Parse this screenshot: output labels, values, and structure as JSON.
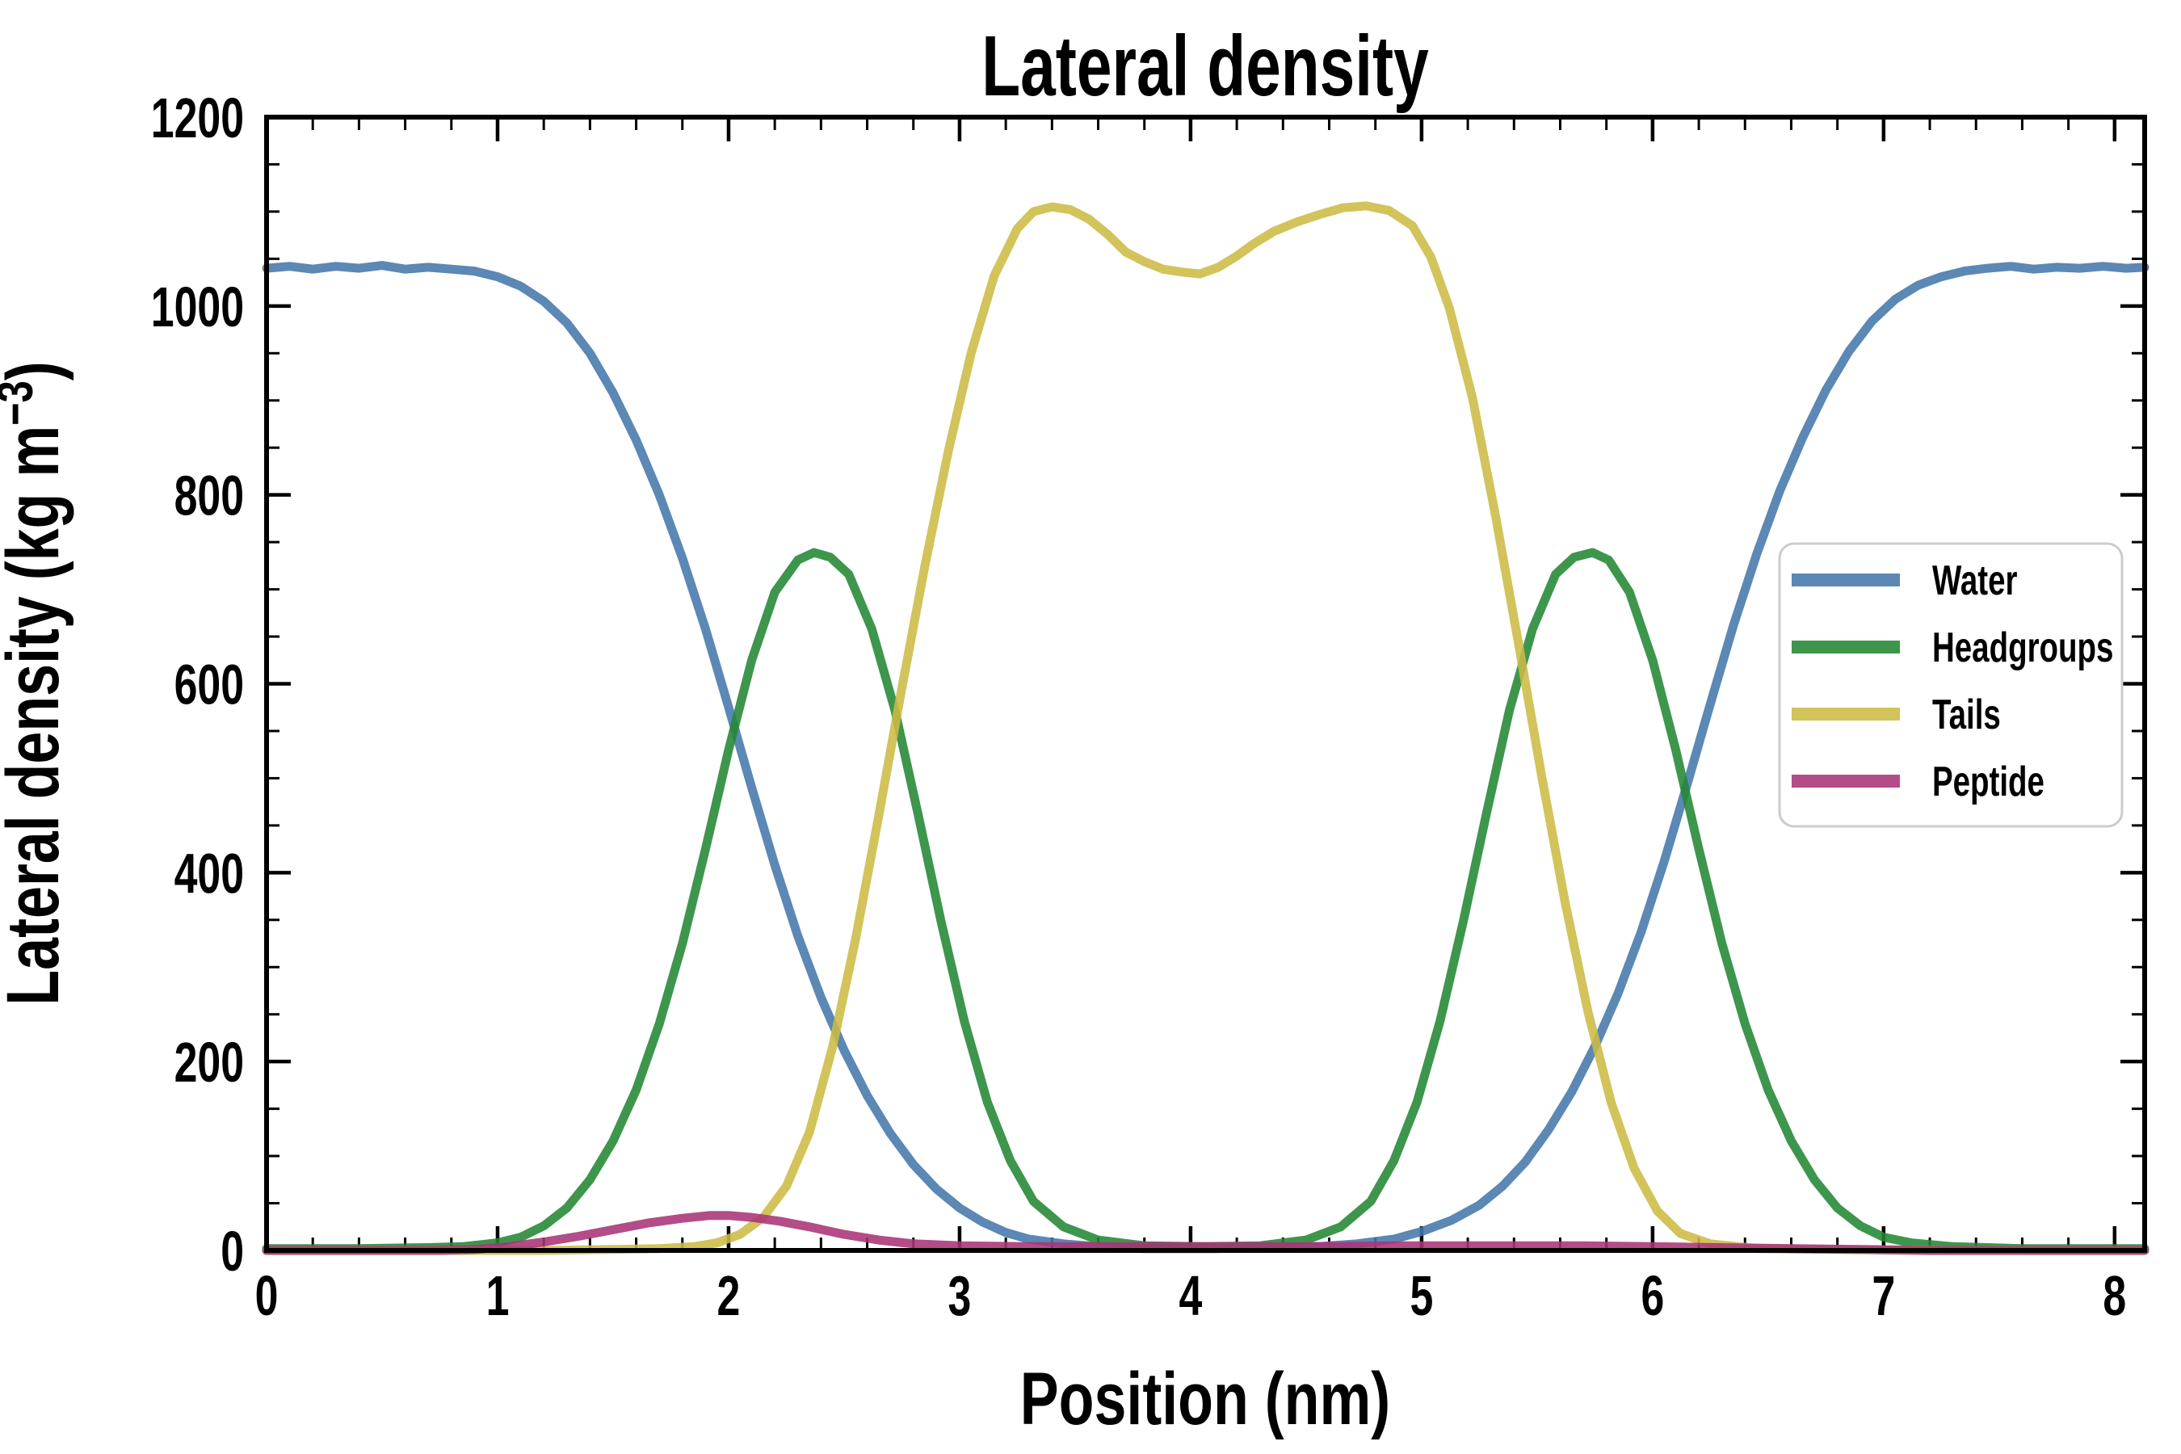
{
  "figure": {
    "background": "#ffffff",
    "text_color": "#000000"
  },
  "chart_data": {
    "type": "line",
    "title": "Lateral density",
    "xlabel": "Position (nm)",
    "ylabel": "Lateral density (kg m⁻³)",
    "ylabel_parts": {
      "main": "Lateral density (kg m",
      "sup": "−3",
      "close": ")"
    },
    "xlim": [
      0,
      8.13
    ],
    "ylim": [
      0,
      1200
    ],
    "x_major_ticks": [
      0,
      1,
      2,
      3,
      4,
      5,
      6,
      7,
      8
    ],
    "x_minor_step": 0.2,
    "y_major_ticks": [
      0,
      200,
      400,
      600,
      800,
      1000,
      1200
    ],
    "y_minor_step": 50,
    "grid": false,
    "tick_direction": "in",
    "line_width": 11,
    "line_opacity": 0.88,
    "legend_position": "center right",
    "series": [
      {
        "name": "Water",
        "color": "#4477AA",
        "points": [
          [
            0,
            1040
          ],
          [
            0.1,
            1042
          ],
          [
            0.2,
            1039
          ],
          [
            0.3,
            1042
          ],
          [
            0.4,
            1040
          ],
          [
            0.5,
            1043
          ],
          [
            0.6,
            1039
          ],
          [
            0.7,
            1041
          ],
          [
            0.8,
            1039
          ],
          [
            0.9,
            1037
          ],
          [
            1.0,
            1031
          ],
          [
            1.1,
            1021
          ],
          [
            1.2,
            1005
          ],
          [
            1.3,
            982
          ],
          [
            1.4,
            950
          ],
          [
            1.5,
            908
          ],
          [
            1.6,
            858
          ],
          [
            1.7,
            800
          ],
          [
            1.8,
            733
          ],
          [
            1.9,
            658
          ],
          [
            2.0,
            575
          ],
          [
            2.1,
            490
          ],
          [
            2.2,
            408
          ],
          [
            2.3,
            333
          ],
          [
            2.4,
            268
          ],
          [
            2.5,
            212
          ],
          [
            2.6,
            164
          ],
          [
            2.7,
            124
          ],
          [
            2.8,
            91
          ],
          [
            2.9,
            65
          ],
          [
            3.0,
            45
          ],
          [
            3.1,
            30
          ],
          [
            3.2,
            19
          ],
          [
            3.3,
            12
          ],
          [
            3.45,
            7
          ],
          [
            3.6,
            4
          ],
          [
            3.8,
            2
          ],
          [
            4.1,
            2
          ],
          [
            4.35,
            3
          ],
          [
            4.55,
            4
          ],
          [
            4.72,
            7
          ],
          [
            4.88,
            12
          ],
          [
            5.0,
            20
          ],
          [
            5.13,
            32
          ],
          [
            5.25,
            48
          ],
          [
            5.35,
            68
          ],
          [
            5.45,
            94
          ],
          [
            5.55,
            128
          ],
          [
            5.65,
            168
          ],
          [
            5.75,
            216
          ],
          [
            5.85,
            272
          ],
          [
            5.95,
            337
          ],
          [
            6.05,
            412
          ],
          [
            6.15,
            494
          ],
          [
            6.25,
            579
          ],
          [
            6.35,
            662
          ],
          [
            6.45,
            737
          ],
          [
            6.55,
            804
          ],
          [
            6.65,
            861
          ],
          [
            6.75,
            911
          ],
          [
            6.85,
            952
          ],
          [
            6.95,
            984
          ],
          [
            7.05,
            1007
          ],
          [
            7.15,
            1022
          ],
          [
            7.25,
            1031
          ],
          [
            7.35,
            1037
          ],
          [
            7.45,
            1040
          ],
          [
            7.55,
            1042
          ],
          [
            7.65,
            1039
          ],
          [
            7.75,
            1041
          ],
          [
            7.85,
            1040
          ],
          [
            7.95,
            1042
          ],
          [
            8.05,
            1040
          ],
          [
            8.13,
            1041
          ]
        ]
      },
      {
        "name": "Headgroups",
        "color": "#228833",
        "points": [
          [
            0,
            2
          ],
          [
            0.4,
            2
          ],
          [
            0.7,
            3
          ],
          [
            0.85,
            4
          ],
          [
            1.0,
            8
          ],
          [
            1.1,
            14
          ],
          [
            1.2,
            26
          ],
          [
            1.3,
            45
          ],
          [
            1.4,
            75
          ],
          [
            1.5,
            116
          ],
          [
            1.6,
            170
          ],
          [
            1.7,
            240
          ],
          [
            1.8,
            325
          ],
          [
            1.9,
            425
          ],
          [
            2.0,
            530
          ],
          [
            2.1,
            625
          ],
          [
            2.2,
            697
          ],
          [
            2.3,
            731
          ],
          [
            2.37,
            739
          ],
          [
            2.44,
            734
          ],
          [
            2.52,
            716
          ],
          [
            2.62,
            658
          ],
          [
            2.72,
            572
          ],
          [
            2.82,
            462
          ],
          [
            2.92,
            348
          ],
          [
            3.02,
            243
          ],
          [
            3.12,
            157
          ],
          [
            3.22,
            95
          ],
          [
            3.32,
            52
          ],
          [
            3.45,
            25
          ],
          [
            3.6,
            11
          ],
          [
            3.8,
            5
          ],
          [
            4.05,
            4
          ],
          [
            4.3,
            5
          ],
          [
            4.5,
            11
          ],
          [
            4.65,
            25
          ],
          [
            4.78,
            52
          ],
          [
            4.88,
            95
          ],
          [
            4.98,
            157
          ],
          [
            5.08,
            243
          ],
          [
            5.18,
            348
          ],
          [
            5.28,
            462
          ],
          [
            5.38,
            572
          ],
          [
            5.48,
            658
          ],
          [
            5.58,
            716
          ],
          [
            5.66,
            734
          ],
          [
            5.74,
            739
          ],
          [
            5.81,
            731
          ],
          [
            5.9,
            697
          ],
          [
            6.0,
            625
          ],
          [
            6.1,
            530
          ],
          [
            6.2,
            425
          ],
          [
            6.3,
            325
          ],
          [
            6.4,
            240
          ],
          [
            6.5,
            170
          ],
          [
            6.6,
            116
          ],
          [
            6.7,
            75
          ],
          [
            6.8,
            45
          ],
          [
            6.9,
            26
          ],
          [
            7.0,
            14
          ],
          [
            7.12,
            8
          ],
          [
            7.3,
            4
          ],
          [
            7.6,
            2
          ],
          [
            8.13,
            2
          ]
        ]
      },
      {
        "name": "Tails",
        "color": "#CCBB44",
        "points": [
          [
            0,
            0
          ],
          [
            0.6,
            0
          ],
          [
            1.2,
            0
          ],
          [
            1.5,
            1
          ],
          [
            1.7,
            2
          ],
          [
            1.85,
            4
          ],
          [
            1.95,
            8
          ],
          [
            2.05,
            17
          ],
          [
            2.15,
            35
          ],
          [
            2.25,
            68
          ],
          [
            2.35,
            125
          ],
          [
            2.45,
            215
          ],
          [
            2.55,
            330
          ],
          [
            2.65,
            460
          ],
          [
            2.75,
            595
          ],
          [
            2.85,
            725
          ],
          [
            2.95,
            845
          ],
          [
            3.05,
            950
          ],
          [
            3.15,
            1032
          ],
          [
            3.25,
            1082
          ],
          [
            3.32,
            1100
          ],
          [
            3.4,
            1105
          ],
          [
            3.48,
            1102
          ],
          [
            3.56,
            1092
          ],
          [
            3.64,
            1076
          ],
          [
            3.72,
            1057
          ],
          [
            3.8,
            1047
          ],
          [
            3.88,
            1039
          ],
          [
            3.96,
            1036
          ],
          [
            4.04,
            1034
          ],
          [
            4.12,
            1041
          ],
          [
            4.2,
            1053
          ],
          [
            4.28,
            1067
          ],
          [
            4.36,
            1079
          ],
          [
            4.46,
            1089
          ],
          [
            4.56,
            1097
          ],
          [
            4.66,
            1104
          ],
          [
            4.76,
            1106
          ],
          [
            4.86,
            1101
          ],
          [
            4.96,
            1085
          ],
          [
            5.04,
            1052
          ],
          [
            5.12,
            998
          ],
          [
            5.22,
            903
          ],
          [
            5.32,
            778
          ],
          [
            5.42,
            642
          ],
          [
            5.52,
            502
          ],
          [
            5.62,
            370
          ],
          [
            5.72,
            253
          ],
          [
            5.82,
            157
          ],
          [
            5.92,
            87
          ],
          [
            6.02,
            42
          ],
          [
            6.12,
            18
          ],
          [
            6.25,
            7
          ],
          [
            6.45,
            2
          ],
          [
            6.8,
            1
          ],
          [
            7.3,
            0
          ],
          [
            8.13,
            0
          ]
        ]
      },
      {
        "name": "Peptide",
        "color": "#AA3377",
        "points": [
          [
            0,
            0
          ],
          [
            0.5,
            0
          ],
          [
            0.75,
            0
          ],
          [
            0.9,
            1
          ],
          [
            1.05,
            4
          ],
          [
            1.2,
            9
          ],
          [
            1.35,
            15
          ],
          [
            1.5,
            22
          ],
          [
            1.65,
            29
          ],
          [
            1.8,
            34
          ],
          [
            1.92,
            37
          ],
          [
            2.0,
            37
          ],
          [
            2.1,
            35
          ],
          [
            2.22,
            31
          ],
          [
            2.35,
            25
          ],
          [
            2.5,
            17
          ],
          [
            2.65,
            11
          ],
          [
            2.8,
            7
          ],
          [
            3.0,
            5
          ],
          [
            3.3,
            4
          ],
          [
            3.7,
            4
          ],
          [
            4.1,
            4
          ],
          [
            4.5,
            4
          ],
          [
            4.9,
            5
          ],
          [
            5.3,
            5
          ],
          [
            5.7,
            5
          ],
          [
            6.0,
            4
          ],
          [
            6.3,
            3
          ],
          [
            6.6,
            2
          ],
          [
            6.9,
            1
          ],
          [
            7.2,
            0
          ],
          [
            7.7,
            0
          ],
          [
            8.13,
            0
          ]
        ]
      }
    ]
  },
  "legend": {
    "border_color": "#cccccc",
    "background": "#ffffff",
    "items": [
      {
        "label": "Water",
        "color": "#4477AA"
      },
      {
        "label": "Headgroups",
        "color": "#228833"
      },
      {
        "label": "Tails",
        "color": "#CCBB44"
      },
      {
        "label": "Peptide",
        "color": "#AA3377"
      }
    ]
  }
}
